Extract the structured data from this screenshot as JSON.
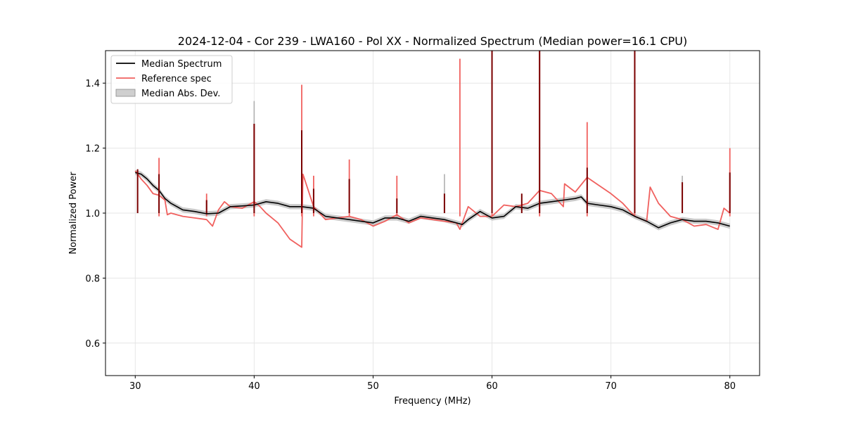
{
  "chart_data": {
    "type": "line",
    "title": "2024-12-04 - Cor 239 - LWA160 - Pol XX - Normalized Spectrum (Median power=16.1 CPU)",
    "xlabel": "Frequency (MHz)",
    "ylabel": "Normalized Power",
    "xlim": [
      27.5,
      82.5
    ],
    "ylim": [
      0.5,
      1.5
    ],
    "x_ticks": [
      30,
      40,
      50,
      60,
      70,
      80
    ],
    "x_tick_labels": [
      "30",
      "40",
      "50",
      "60",
      "70",
      "80"
    ],
    "y_ticks": [
      0.6,
      0.8,
      1.0,
      1.2,
      1.4
    ],
    "y_tick_labels": [
      "0.6",
      "0.8",
      "1.0",
      "1.2",
      "1.4"
    ],
    "grid": true,
    "legend": {
      "position": "top-left",
      "entries": [
        "Median Spectrum",
        "Reference spec",
        "Median Abs. Dev."
      ]
    },
    "colors": {
      "median": "#000000",
      "reference": "#f0605e",
      "mad": "#b0b0b0",
      "spike_overlap": "#7a0000"
    },
    "series": [
      {
        "name": "Median Spectrum",
        "x": [
          30.0,
          30.5,
          31.0,
          31.5,
          32.0,
          32.5,
          33.0,
          34.0,
          35.0,
          36.0,
          37.0,
          38.0,
          39.0,
          40.0,
          41.0,
          42.0,
          43.0,
          44.0,
          45.0,
          46.0,
          47.0,
          48.0,
          49.0,
          50.0,
          51.0,
          52.0,
          53.0,
          54.0,
          55.0,
          56.0,
          57.0,
          57.5,
          58.0,
          59.0,
          60.0,
          61.0,
          62.0,
          63.0,
          64.0,
          65.0,
          66.0,
          67.0,
          67.5,
          68.0,
          69.0,
          70.0,
          71.0,
          72.0,
          73.0,
          74.0,
          75.0,
          76.0,
          77.0,
          78.0,
          79.0,
          80.0
        ],
        "values": [
          1.125,
          1.12,
          1.105,
          1.085,
          1.07,
          1.045,
          1.03,
          1.01,
          1.005,
          0.998,
          1.0,
          1.02,
          1.022,
          1.025,
          1.035,
          1.03,
          1.02,
          1.02,
          1.015,
          0.99,
          0.985,
          0.98,
          0.975,
          0.97,
          0.985,
          0.985,
          0.975,
          0.99,
          0.985,
          0.98,
          0.97,
          0.965,
          0.98,
          1.005,
          0.985,
          0.99,
          1.02,
          1.015,
          1.03,
          1.035,
          1.04,
          1.045,
          1.05,
          1.03,
          1.025,
          1.02,
          1.01,
          0.99,
          0.975,
          0.955,
          0.97,
          0.98,
          0.975,
          0.975,
          0.97,
          0.96
        ],
        "spikes": [
          {
            "x": 30.2,
            "y": 1.135
          },
          {
            "x": 32.0,
            "y": 1.12
          },
          {
            "x": 36.0,
            "y": 1.04
          },
          {
            "x": 40.0,
            "y": 1.275
          },
          {
            "x": 44.0,
            "y": 1.255
          },
          {
            "x": 45.0,
            "y": 1.075
          },
          {
            "x": 48.0,
            "y": 1.105
          },
          {
            "x": 52.0,
            "y": 1.045
          },
          {
            "x": 56.0,
            "y": 1.06
          },
          {
            "x": 60.0,
            "y": 1.5
          },
          {
            "x": 62.5,
            "y": 1.06
          },
          {
            "x": 64.0,
            "y": 1.5
          },
          {
            "x": 68.0,
            "y": 1.14
          },
          {
            "x": 72.0,
            "y": 1.5
          },
          {
            "x": 76.0,
            "y": 1.095
          },
          {
            "x": 80.0,
            "y": 1.125
          }
        ]
      },
      {
        "name": "Reference spec",
        "x": [
          30.0,
          30.5,
          31.0,
          31.5,
          32.0,
          32.5,
          32.7,
          33.0,
          34.0,
          35.0,
          36.0,
          36.5,
          37.0,
          37.5,
          38.0,
          39.0,
          40.0,
          40.5,
          41.0,
          42.0,
          43.0,
          44.0,
          44.1,
          45.0,
          46.0,
          47.0,
          48.0,
          49.0,
          50.0,
          51.0,
          52.0,
          53.0,
          54.0,
          55.0,
          56.0,
          57.0,
          57.3,
          58.0,
          59.0,
          60.0,
          61.0,
          62.0,
          63.0,
          64.0,
          65.0,
          66.0,
          66.1,
          67.0,
          68.0,
          69.0,
          70.0,
          71.0,
          72.0,
          73.0,
          73.3,
          74.0,
          75.0,
          76.0,
          77.0,
          78.0,
          79.0,
          79.5,
          80.0
        ],
        "values": [
          1.13,
          1.105,
          1.085,
          1.06,
          1.055,
          1.04,
          0.995,
          1.0,
          0.99,
          0.985,
          0.98,
          0.96,
          1.01,
          1.035,
          1.02,
          1.015,
          1.035,
          1.02,
          1.0,
          0.97,
          0.92,
          0.895,
          1.12,
          1.02,
          0.98,
          0.985,
          0.99,
          0.98,
          0.96,
          0.975,
          0.995,
          0.97,
          0.985,
          0.98,
          0.975,
          0.97,
          0.95,
          1.02,
          0.99,
          0.99,
          1.025,
          1.02,
          1.03,
          1.07,
          1.06,
          1.02,
          1.09,
          1.065,
          1.11,
          1.085,
          1.06,
          1.03,
          0.99,
          0.975,
          1.08,
          1.03,
          0.99,
          0.98,
          0.96,
          0.965,
          0.95,
          1.015,
          1.0
        ],
        "spikes": [
          {
            "x": 32.0,
            "y": 1.17
          },
          {
            "x": 36.0,
            "y": 1.06
          },
          {
            "x": 40.0,
            "y": 1.275
          },
          {
            "x": 44.0,
            "y": 1.395
          },
          {
            "x": 45.0,
            "y": 1.115
          },
          {
            "x": 48.0,
            "y": 1.165
          },
          {
            "x": 52.0,
            "y": 1.115
          },
          {
            "x": 57.3,
            "y": 1.475
          },
          {
            "x": 60.0,
            "y": 1.5
          },
          {
            "x": 64.0,
            "y": 1.5
          },
          {
            "x": 68.0,
            "y": 1.28
          },
          {
            "x": 72.0,
            "y": 1.5
          },
          {
            "x": 80.0,
            "y": 1.2
          }
        ]
      }
    ],
    "mad_band": {
      "name": "Median Abs. Dev.",
      "half_width": 0.008,
      "extra_peaks": [
        {
          "x": 40.0,
          "y": 1.345
        },
        {
          "x": 56.0,
          "y": 1.12
        },
        {
          "x": 76.0,
          "y": 1.115
        }
      ]
    }
  }
}
